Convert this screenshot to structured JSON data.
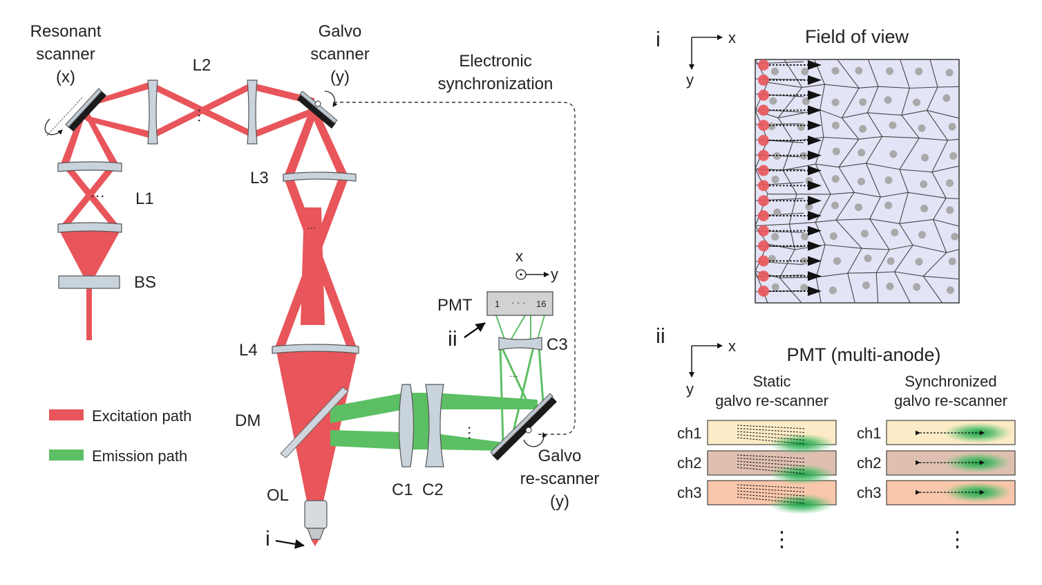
{
  "colors": {
    "excitation": "#e8555a",
    "emission": "#5cbf63",
    "optic": "#c9d3dc",
    "fov_bg": "#e3e4f6",
    "nucleus": "#a9a9a9",
    "ch1_bg": "#fcebc6",
    "ch2_bg": "#dfc0b0",
    "ch3_bg": "#f9c7ab"
  },
  "labels": {
    "resonant_scanner": [
      "Resonant",
      "scanner",
      "(x)"
    ],
    "galvo_scanner": [
      "Galvo",
      "scanner",
      "(y)"
    ],
    "electronic_sync": [
      "Electronic",
      "synchronization"
    ],
    "l1": "L1",
    "l2": "L2",
    "l3": "L3",
    "l4": "L4",
    "bs": "BS",
    "dm": "DM",
    "ol": "OL",
    "c1": "C1",
    "c2": "C2",
    "c3": "C3",
    "pmt": "PMT",
    "pmt_left": "1",
    "pmt_right": "16",
    "pmt_axis_x": "x",
    "pmt_axis_y": "y",
    "galvo_rescanner": [
      "Galvo",
      "re-scanner",
      "(y)"
    ],
    "marker_i": "i",
    "marker_ii": "ii"
  },
  "legend": {
    "excitation": "Excitation path",
    "emission": "Emission path"
  },
  "panel_i": {
    "roman": "i",
    "title": "Field of view",
    "axis_x": "x",
    "axis_y": "y"
  },
  "panel_ii": {
    "roman": "ii",
    "title": "PMT (multi-anode)",
    "axis_x": "x",
    "axis_y": "y",
    "static_title": [
      "Static",
      "galvo re-scanner"
    ],
    "sync_title": [
      "Synchronized",
      "galvo re-scanner"
    ],
    "channels": [
      "ch1",
      "ch2",
      "ch3"
    ],
    "more": "⋮"
  }
}
